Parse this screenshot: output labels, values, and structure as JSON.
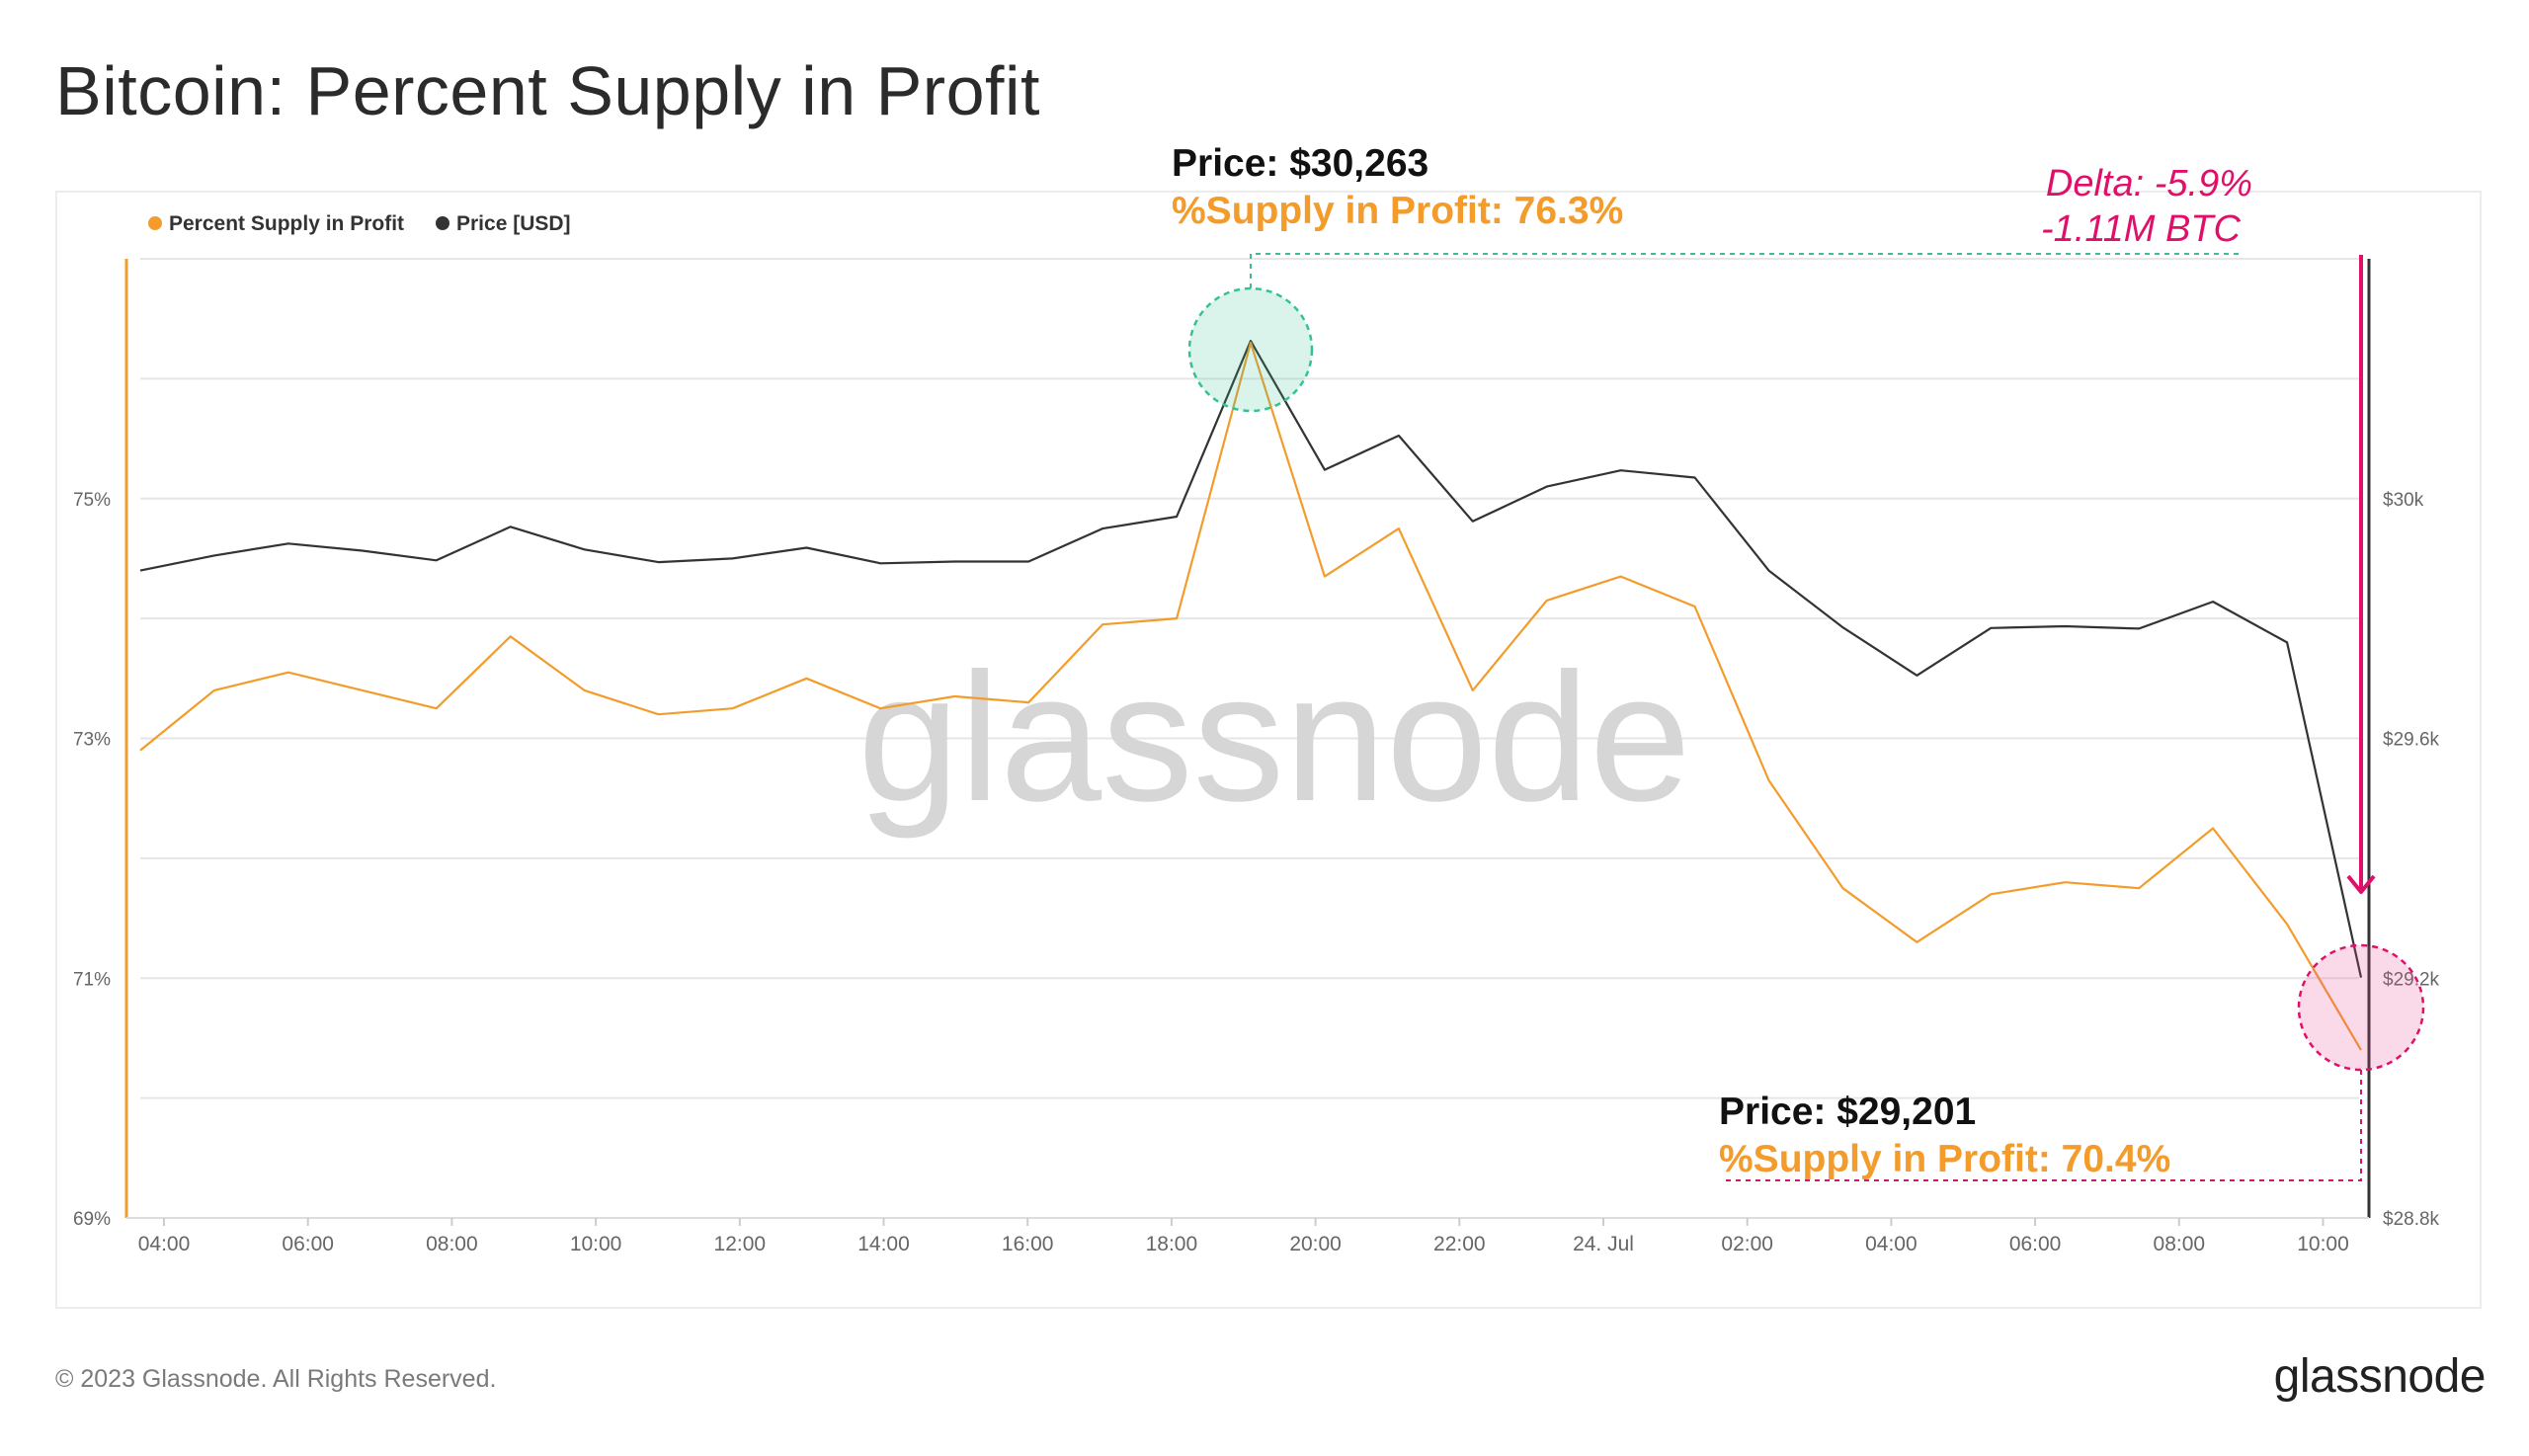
{
  "page": {
    "title": "Bitcoin: Percent Supply in Profit",
    "copyright": "© 2023 Glassnode. All Rights Reserved.",
    "logo_text": "glassnode",
    "watermark": "glassnode"
  },
  "colors": {
    "supply": "#f39c2c",
    "price": "#333333",
    "annotation_pink": "#e0106a",
    "highlight_green": "#34c38f",
    "highlight_pink": "#e8418a",
    "grid": "#e6e6e6"
  },
  "chart_data": {
    "type": "line",
    "legend_position": "top-left",
    "grid": true,
    "x_ticks": [
      "04:00",
      "06:00",
      "08:00",
      "10:00",
      "12:00",
      "14:00",
      "16:00",
      "18:00",
      "20:00",
      "22:00",
      "24. Jul",
      "02:00",
      "04:00",
      "06:00",
      "08:00",
      "10:00"
    ],
    "y_left": {
      "ticks": [
        "69%",
        "71%",
        "73%",
        "75%"
      ],
      "ylim": [
        69,
        77
      ]
    },
    "y_right": {
      "ticks": [
        "$28.8k",
        "$29.2k",
        "$29.6k",
        "$30k"
      ],
      "ylim": [
        28800,
        30400
      ]
    },
    "series": [
      {
        "name": "Percent Supply in Profit",
        "axis": "left",
        "values": [
          72.9,
          73.4,
          73.55,
          73.4,
          73.25,
          73.85,
          73.4,
          73.2,
          73.25,
          73.5,
          73.25,
          73.35,
          73.3,
          73.95,
          74.0,
          76.3,
          74.35,
          74.75,
          73.4,
          74.15,
          74.35,
          74.1,
          72.65,
          71.75,
          71.3,
          71.7,
          71.8,
          71.75,
          72.25,
          71.45,
          70.4
        ]
      },
      {
        "name": "Price [USD]",
        "axis": "right",
        "values": [
          29880,
          29905,
          29925,
          29913,
          29897,
          29953,
          29915,
          29894,
          29900,
          29918,
          29892,
          29895,
          29895,
          29950,
          29970,
          30263,
          30048,
          30105,
          29962,
          30020,
          30047,
          30035,
          29880,
          29785,
          29705,
          29784,
          29787,
          29783,
          29828,
          29760,
          29201
        ]
      }
    ],
    "annotations": {
      "peak_price": "Price: $30,263",
      "peak_supply": "%Supply in Profit: 76.3%",
      "end_price": "Price: $29,201",
      "end_supply": "%Supply in Profit: 70.4%",
      "delta_pct": "Delta: -5.9%",
      "delta_btc": "-1.11M BTC"
    }
  }
}
